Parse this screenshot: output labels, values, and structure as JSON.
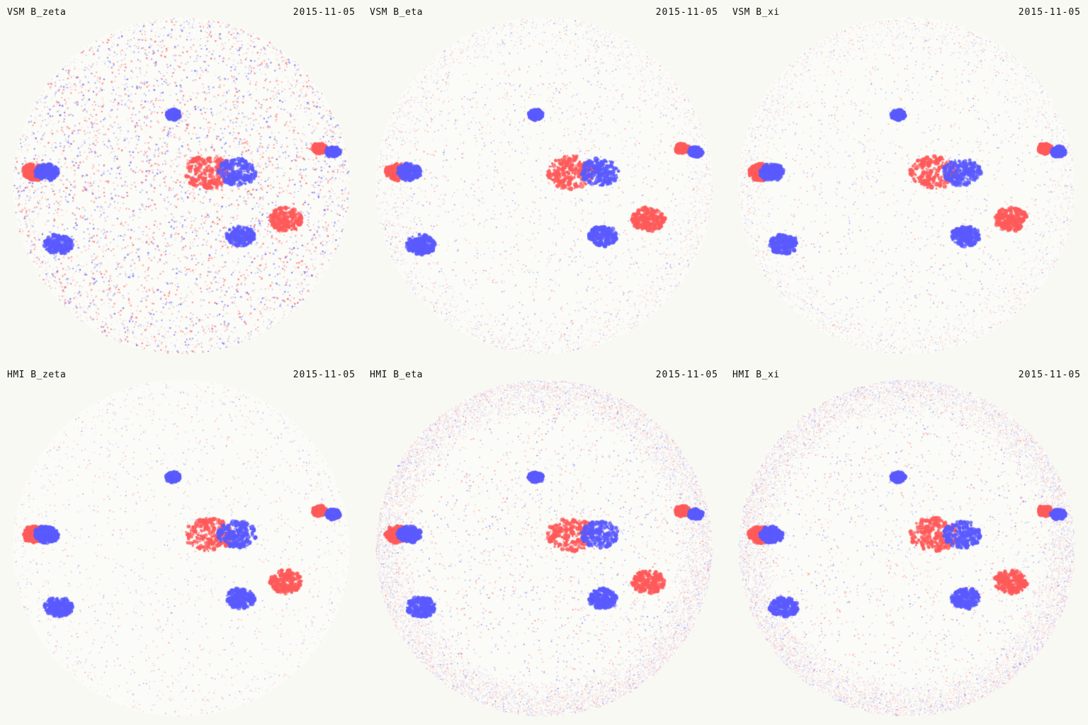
{
  "colors": {
    "background": "#f9f9f4",
    "positive": "#ff5a5a",
    "negative": "#5a5aff",
    "label": "#111111"
  },
  "panels": [
    {
      "title": "VSM B_zeta",
      "date": "2015-11-05",
      "noise": 0.55,
      "limb_noise": 0.1
    },
    {
      "title": "VSM B_eta",
      "date": "2015-11-05",
      "noise": 0.18,
      "limb_noise": 0.2
    },
    {
      "title": "VSM B_xi",
      "date": "2015-11-05",
      "noise": 0.15,
      "limb_noise": 0.2
    },
    {
      "title": "HMI B_zeta",
      "date": "2015-11-05",
      "noise": 0.12,
      "limb_noise": 0.05
    },
    {
      "title": "HMI B_eta",
      "date": "2015-11-05",
      "noise": 0.25,
      "limb_noise": 0.9
    },
    {
      "title": "HMI B_xi",
      "date": "2015-11-05",
      "noise": 0.22,
      "limb_noise": 0.9
    }
  ]
}
